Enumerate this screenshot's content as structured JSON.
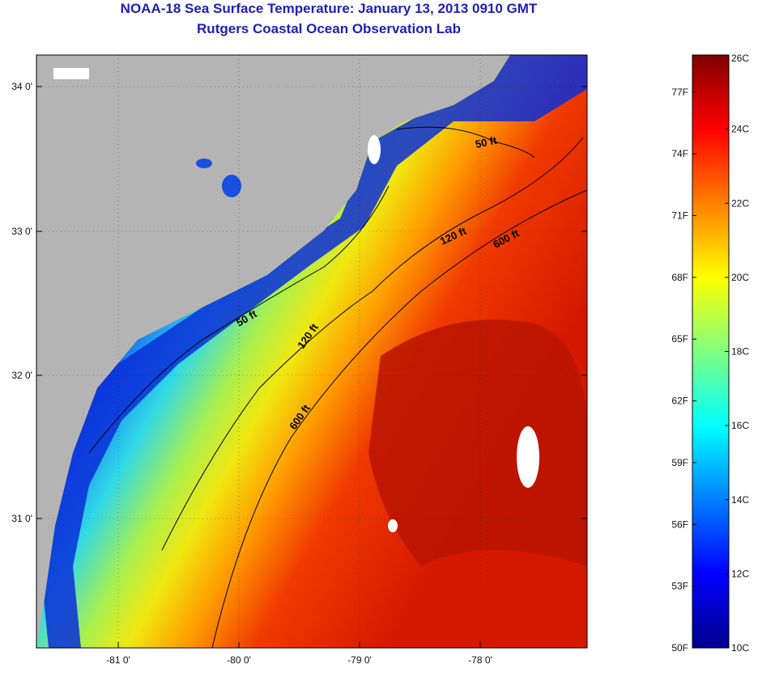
{
  "title_line1": "NOAA-18 Sea Surface Temperature:  January 13, 2013 0910 GMT",
  "title_line2": "Rutgers Coastal Ocean Observation Lab",
  "latitude_labels": [
    "34 0'",
    "33 0'",
    "32 0'",
    "31 0'"
  ],
  "longitude_labels": [
    "-81 0'",
    "-80 0'",
    "-79 0'",
    "-78 0'"
  ],
  "contour_labels": [
    "50 ft",
    "120 ft",
    "600 ft",
    "50 ft",
    "120 ft",
    "600 ft"
  ],
  "colorbar": {
    "fahrenheit_labels": [
      "77F",
      "74F",
      "71F",
      "68F",
      "65F",
      "62F",
      "59F",
      "56F",
      "53F",
      "50F"
    ],
    "celsius_labels": [
      "26C",
      "24C",
      "22C",
      "20C",
      "18C",
      "16C",
      "14C",
      "12C",
      "10C"
    ],
    "min_celsius": 10,
    "max_celsius": 26
  },
  "colors": {
    "land": "#b4b4b4",
    "title": "#1f1fb4",
    "cold": "#00008f",
    "warm": "#800000"
  }
}
